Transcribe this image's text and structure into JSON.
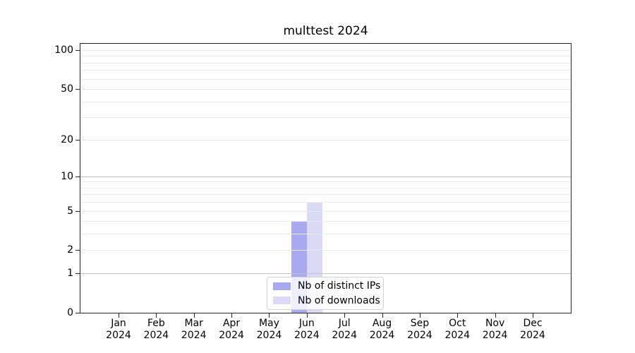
{
  "chart_data": {
    "type": "bar",
    "title": "multtest 2024",
    "categories": [
      "Jan 2024",
      "Feb 2024",
      "Mar 2024",
      "Apr 2024",
      "May 2024",
      "Jun 2024",
      "Jul 2024",
      "Aug 2024",
      "Sep 2024",
      "Oct 2024",
      "Nov 2024",
      "Dec 2024"
    ],
    "series": [
      {
        "name": "Nb of distinct IPs",
        "color": "#a9a9f0",
        "values": [
          0,
          0,
          0,
          0,
          0,
          4,
          0,
          0,
          0,
          0,
          0,
          0
        ]
      },
      {
        "name": "Nb of downloads",
        "color": "#dadaf6",
        "values": [
          0,
          0,
          0,
          0,
          0,
          6,
          0,
          0,
          0,
          0,
          0,
          0
        ]
      }
    ],
    "yscale": "log1p",
    "ylim": [
      0,
      112
    ],
    "yticks": [
      0,
      1,
      2,
      5,
      10,
      20,
      50,
      100
    ],
    "grid_minor": [
      2,
      3,
      4,
      5,
      6,
      7,
      8,
      9,
      20,
      30,
      40,
      50,
      60,
      70,
      80,
      90,
      100
    ],
    "grid_major": [
      1,
      10
    ],
    "grid": "horizontal",
    "legend_position": "lower center",
    "xlabel": "",
    "ylabel": ""
  },
  "colors": {
    "grid_minor": "#ebebeb",
    "grid_major": "#c2c2c2",
    "spine": "#262626",
    "text": "#000000",
    "legend_border": "#d2d2d2",
    "background": "#ffffff"
  }
}
